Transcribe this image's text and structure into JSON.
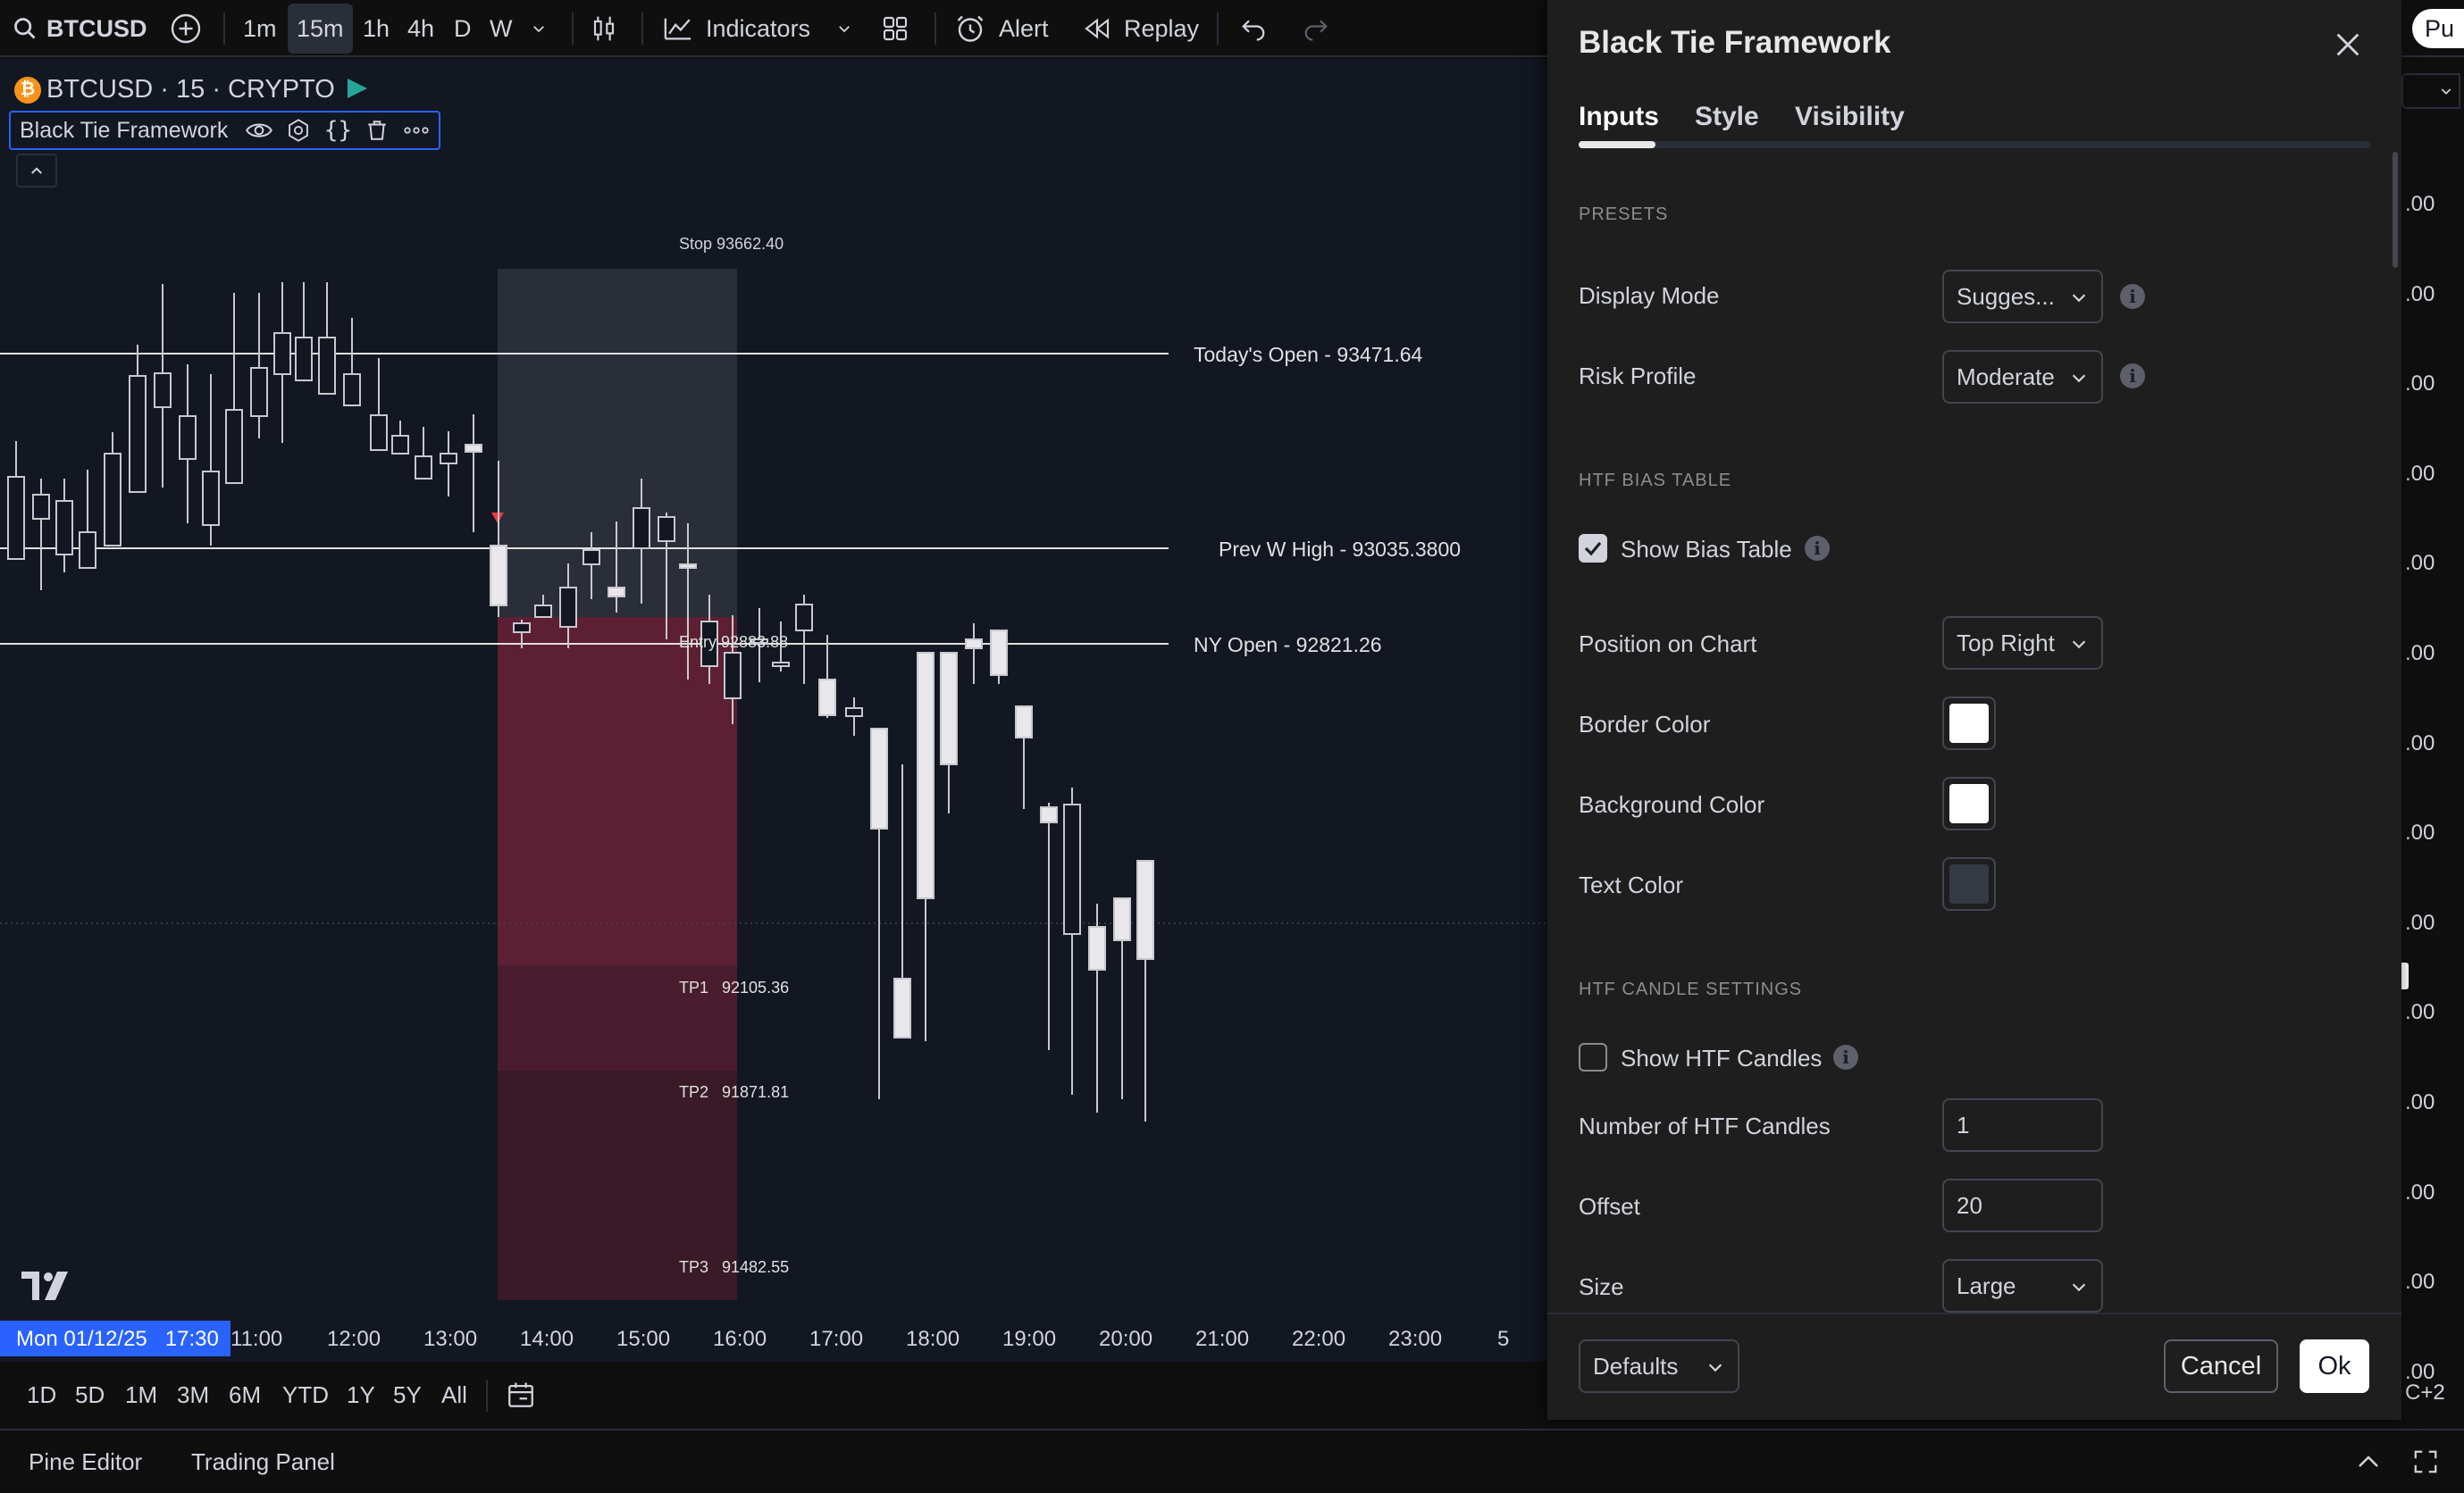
{
  "topbar": {
    "symbol": "BTCUSD",
    "intervals": [
      "1m",
      "15m",
      "1h",
      "4h",
      "D",
      "W"
    ],
    "indicators_label": "Indicators",
    "alert_label": "Alert",
    "replay_label": "Replay",
    "publish_label": "Pu"
  },
  "chart": {
    "symbol_line": "BTCUSD · 15 · CRYPTO",
    "indicator_name": "Black Tie Framework",
    "labels": {
      "stop": "Stop  93662.40",
      "todays_open": "Today's Open - 93471.64",
      "prev_w_high": "Prev W High - 93035.3800",
      "ny_open": "NY Open - 92821.26",
      "entry": "Entry 92883.88",
      "tp1": "TP1   92105.36",
      "tp2": "TP2   91871.81",
      "tp3": "TP3   91482.55"
    },
    "time_axis": {
      "cursor_label": "Mon 01/12/25   17:30",
      "ticks": [
        "11:00",
        "12:00",
        "13:00",
        "14:00",
        "15:00",
        "16:00",
        "17:00",
        "18:00",
        "19:00",
        "20:00",
        "21:00",
        "22:00",
        "23:00",
        "5"
      ]
    },
    "price_axis": [
      ".00",
      ".00",
      ".00",
      ".00",
      ".00",
      ".00",
      ".00",
      ".00",
      ".00",
      ".00",
      ".00",
      ".00",
      ".00",
      ".00",
      ".00"
    ],
    "colors": {
      "background": "#131722",
      "candle_up": "#e8e8ec",
      "entry_zone": "#5c1f33",
      "stop_zone": "#2a2e39"
    }
  },
  "bottombar": {
    "ranges": [
      "1D",
      "5D",
      "1M",
      "3M",
      "6M",
      "YTD",
      "1Y",
      "5Y",
      "All"
    ],
    "timezone": "C+2"
  },
  "footer": {
    "tabs": [
      "Pine Editor",
      "Trading Panel"
    ]
  },
  "dialog": {
    "title": "Black Tie Framework",
    "tabs": [
      "Inputs",
      "Style",
      "Visibility"
    ],
    "active_tab": "Inputs",
    "sections": {
      "presets": "PRESETS",
      "htf_bias": "HTF BIAS TABLE",
      "htf_candles": "HTF CANDLE SETTINGS"
    },
    "fields": {
      "display_mode": {
        "label": "Display Mode",
        "value": "Sugges..."
      },
      "risk_profile": {
        "label": "Risk Profile",
        "value": "Moderate"
      },
      "show_bias_table": {
        "label": "Show Bias Table",
        "checked": true
      },
      "position_on_chart": {
        "label": "Position on Chart",
        "value": "Top Right"
      },
      "border_color": {
        "label": "Border Color",
        "color": "#ffffff"
      },
      "background_color": {
        "label": "Background Color",
        "color": "#ffffff"
      },
      "text_color": {
        "label": "Text Color",
        "color": "#363a45"
      },
      "show_htf_candles": {
        "label": "Show HTF Candles",
        "checked": false
      },
      "num_htf_candles": {
        "label": "Number of HTF Candles",
        "value": "1"
      },
      "offset": {
        "label": "Offset",
        "value": "20"
      },
      "size": {
        "label": "Size",
        "value": "Large"
      }
    },
    "footer": {
      "defaults_label": "Defaults",
      "cancel_label": "Cancel",
      "ok_label": "Ok"
    }
  }
}
